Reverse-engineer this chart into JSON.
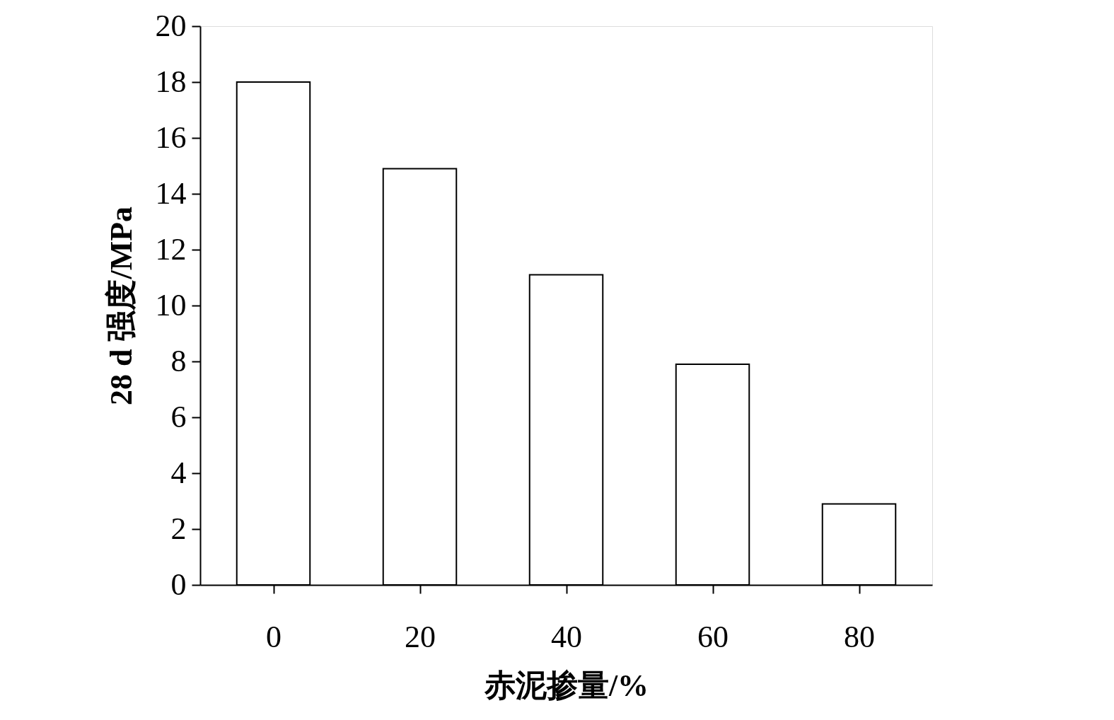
{
  "chart_data": {
    "type": "bar",
    "xlabel": "赤泥掺量/%",
    "ylabel": "28 d 强度/MPa",
    "categories": [
      "0",
      "20",
      "40",
      "60",
      "80"
    ],
    "values": [
      18,
      14.9,
      11.1,
      7.9,
      2.9
    ],
    "color": "#ffffff",
    "ylim": [
      0,
      20
    ],
    "yticks": [
      0,
      2,
      4,
      6,
      8,
      10,
      12,
      14,
      16,
      18,
      20
    ],
    "grid": false
  }
}
